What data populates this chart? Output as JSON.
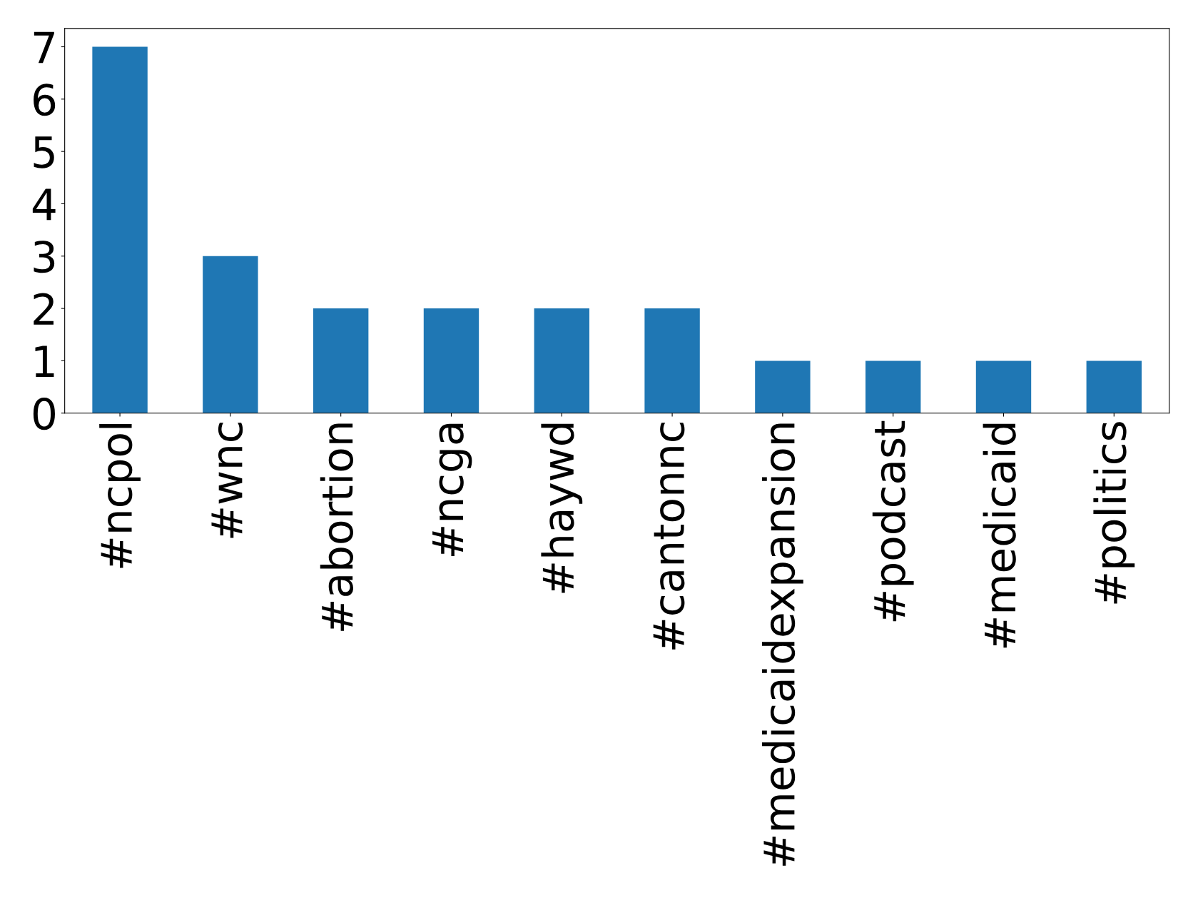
{
  "chart_data": {
    "type": "bar",
    "categories": [
      "#ncpol",
      "#wnc",
      "#abortion",
      "#ncga",
      "#haywd",
      "#cantonnc",
      "#medicaidexpansion",
      "#podcast",
      "#medicaid",
      "#politics"
    ],
    "values": [
      7,
      3,
      2,
      2,
      2,
      2,
      1,
      1,
      1,
      1
    ],
    "color": "#1f77b4",
    "ylim": [
      0,
      7.35
    ],
    "yticks": [
      0,
      1,
      2,
      3,
      4,
      5,
      6,
      7
    ],
    "grid": false,
    "legend": false
  }
}
